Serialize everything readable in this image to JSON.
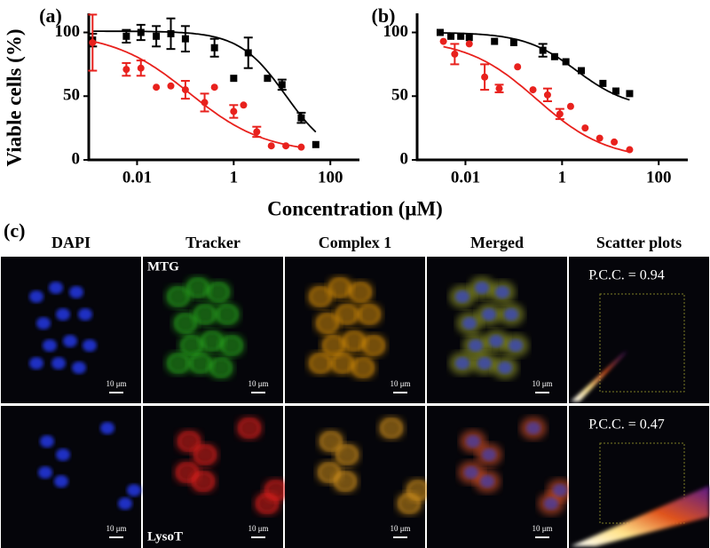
{
  "figure": {
    "ylabel": "Viable cells (%)",
    "xlabel": "Concentration (μM)"
  },
  "chart_data": [
    {
      "type": "scatter",
      "panel": "(a)",
      "xlog": true,
      "xlim": [
        0.001,
        400
      ],
      "ylim": [
        0,
        115
      ],
      "xticks": [
        0.01,
        1,
        100
      ],
      "yticks": [
        0,
        50,
        100
      ],
      "series": [
        {
          "color": "#000000",
          "marker": "square",
          "x": [
            0.0012,
            0.006,
            0.012,
            0.025,
            0.05,
            0.1,
            0.4,
            1,
            2,
            5,
            10,
            25,
            50
          ],
          "values": [
            94,
            97,
            100,
            97,
            99,
            95,
            88,
            64,
            84,
            64,
            59,
            33,
            12
          ],
          "errors": [
            5,
            5,
            6,
            8,
            12,
            10,
            7,
            null,
            12,
            null,
            4,
            4,
            null
          ],
          "fit": {
            "top": 101,
            "bottom": 0,
            "ic50": 12,
            "hill": 0.9
          }
        },
        {
          "color": "#e8211d",
          "marker": "circle",
          "x": [
            0.0012,
            0.006,
            0.012,
            0.025,
            0.05,
            0.1,
            0.25,
            0.4,
            1,
            1.6,
            3,
            6,
            12,
            25
          ],
          "values": [
            92,
            71,
            72,
            57,
            58,
            55,
            45,
            57,
            38,
            43,
            22,
            11,
            11,
            10
          ],
          "errors": [
            22,
            5,
            6,
            null,
            null,
            7,
            7,
            null,
            5,
            null,
            4,
            null,
            null,
            null
          ],
          "fit": {
            "top": 100,
            "bottom": 5,
            "ic50": 0.12,
            "hill": 0.55
          }
        }
      ]
    },
    {
      "type": "scatter",
      "panel": "(b)",
      "xlog": true,
      "xlim": [
        0.001,
        400
      ],
      "ylim": [
        0,
        115
      ],
      "xticks": [
        0.01,
        1,
        100
      ],
      "yticks": [
        0,
        50,
        100
      ],
      "series": [
        {
          "color": "#000000",
          "marker": "square",
          "x": [
            0.003,
            0.005,
            0.008,
            0.012,
            0.04,
            0.1,
            0.4,
            0.7,
            1.2,
            2.5,
            7,
            13,
            25
          ],
          "values": [
            100,
            97,
            97,
            96,
            93,
            92,
            86,
            81,
            77,
            70,
            60,
            54,
            52
          ],
          "errors": [
            null,
            null,
            null,
            null,
            null,
            null,
            5,
            null,
            null,
            null,
            null,
            null,
            null
          ],
          "fit": {
            "top": 100,
            "bottom": 40,
            "ic50": 2,
            "hill": 0.8
          }
        },
        {
          "color": "#e8211d",
          "marker": "circle",
          "x": [
            0.0035,
            0.006,
            0.012,
            0.025,
            0.05,
            0.12,
            0.25,
            0.5,
            0.9,
            1.5,
            3,
            6,
            12,
            25
          ],
          "values": [
            93,
            83,
            91,
            65,
            56,
            73,
            55,
            51,
            36,
            42,
            25,
            17,
            14,
            8
          ],
          "errors": [
            null,
            8,
            null,
            10,
            3,
            null,
            null,
            5,
            4,
            null,
            null,
            null,
            null,
            null
          ],
          "fit": {
            "top": 95,
            "bottom": 0,
            "ic50": 0.3,
            "hill": 0.6
          }
        }
      ]
    }
  ],
  "panel_c": {
    "label": "(c)",
    "columns": [
      "DAPI",
      "Tracker",
      "Complex 1",
      "Merged",
      "Scatter plots"
    ],
    "rows": [
      {
        "tracker": "MTG",
        "pcc": "P.C.C. = 0.94"
      },
      {
        "tracker": "LysoT",
        "pcc": "P.C.C. = 0.47"
      }
    ],
    "scale_bar": "10 μm"
  }
}
